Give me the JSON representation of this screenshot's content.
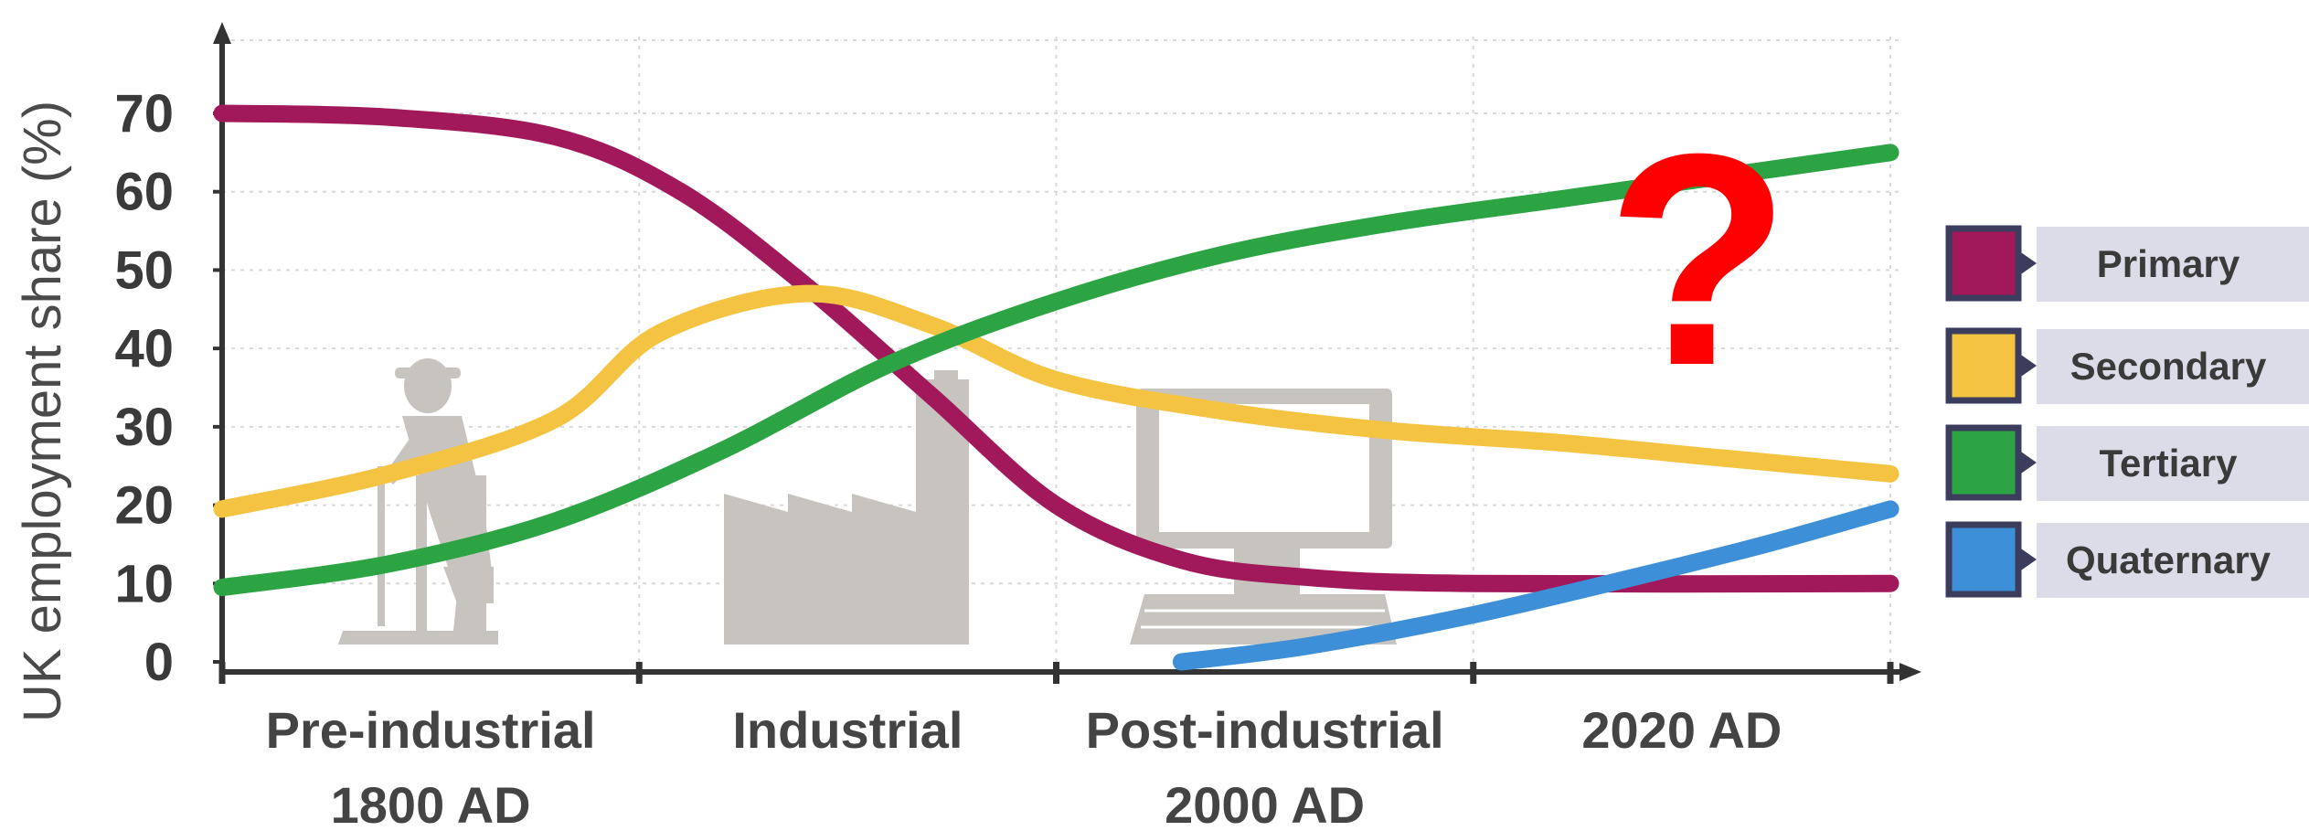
{
  "chart_data": {
    "type": "line",
    "title": "",
    "ylabel": "UK employment share (%)",
    "xlabel": "",
    "ylim": [
      0,
      70
    ],
    "y_ticks": [
      0,
      10,
      20,
      30,
      40,
      50,
      60,
      70
    ],
    "grid": true,
    "legend_position": "right",
    "categories": [
      {
        "line1": "Pre-industrial",
        "line2": "1800 AD",
        "x": 0
      },
      {
        "line1": "Industrial",
        "line2": "",
        "x": 1
      },
      {
        "line1": "Post-industrial",
        "line2": "2000 AD",
        "x": 2
      },
      {
        "line1": "2020 AD",
        "line2": "",
        "x": 3
      }
    ],
    "x_range": [
      0,
      4
    ],
    "series": [
      {
        "name": "Primary",
        "color": "#a2195b",
        "points": [
          [
            0,
            70
          ],
          [
            0.4,
            69.5
          ],
          [
            0.8,
            67
          ],
          [
            1.1,
            60
          ],
          [
            1.4,
            48
          ],
          [
            1.7,
            34
          ],
          [
            2.0,
            20
          ],
          [
            2.3,
            13
          ],
          [
            2.6,
            10.8
          ],
          [
            3.0,
            10
          ],
          [
            4.0,
            10
          ]
        ]
      },
      {
        "name": "Secondary",
        "color": "#f5c342",
        "points": [
          [
            0,
            19.5
          ],
          [
            0.4,
            24
          ],
          [
            0.8,
            31
          ],
          [
            1.05,
            42
          ],
          [
            1.4,
            47
          ],
          [
            1.7,
            43
          ],
          [
            2.0,
            36
          ],
          [
            2.4,
            32
          ],
          [
            2.8,
            29.5
          ],
          [
            3.2,
            28
          ],
          [
            3.6,
            26
          ],
          [
            4.0,
            24
          ]
        ]
      },
      {
        "name": "Tertiary",
        "color": "#2ca444",
        "points": [
          [
            0,
            9.5
          ],
          [
            0.4,
            12.5
          ],
          [
            0.8,
            18
          ],
          [
            1.2,
            27
          ],
          [
            1.6,
            38
          ],
          [
            2.0,
            46
          ],
          [
            2.4,
            52
          ],
          [
            2.8,
            56
          ],
          [
            3.2,
            59
          ],
          [
            3.6,
            62
          ],
          [
            4.0,
            65
          ]
        ]
      },
      {
        "name": "Quaternary",
        "color": "#3d8fd8",
        "points": [
          [
            2.3,
            0
          ],
          [
            2.6,
            2
          ],
          [
            3.0,
            6
          ],
          [
            3.4,
            11
          ],
          [
            3.7,
            15
          ],
          [
            4.0,
            19.5
          ]
        ]
      }
    ],
    "annotation": "?",
    "illustrations": [
      "farmer-icon",
      "factory-icon",
      "computer-icon"
    ]
  }
}
